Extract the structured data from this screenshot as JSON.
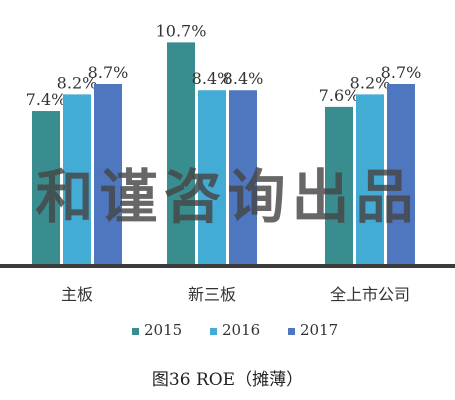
{
  "chart_data": {
    "type": "bar",
    "categories": [
      "主板",
      "新三板",
      "全上市公司"
    ],
    "series": [
      {
        "name": "2015",
        "values": [
          7.4,
          10.7,
          7.6
        ],
        "labels": [
          "7.4%",
          "10.7%",
          "7.6%"
        ],
        "color": "#3a8d8e"
      },
      {
        "name": "2016",
        "values": [
          8.2,
          8.4,
          8.2
        ],
        "labels": [
          "8.2%",
          "8.4%",
          "8.2%"
        ],
        "color": "#43acd4"
      },
      {
        "name": "2017",
        "values": [
          8.7,
          8.4,
          8.7
        ],
        "labels": [
          "8.7%",
          "8.4%",
          "8.7%"
        ],
        "color": "#4f77c0"
      }
    ],
    "ylim": [
      0,
      11.5
    ],
    "grid": false,
    "legend_position": "bottom",
    "title": "",
    "xlabel": "",
    "ylabel": ""
  },
  "watermark": "和谨咨询出品",
  "caption": "图36 ROE（摊薄）",
  "colors": {
    "axis": "#3b3b3b",
    "text": "#333333"
  }
}
